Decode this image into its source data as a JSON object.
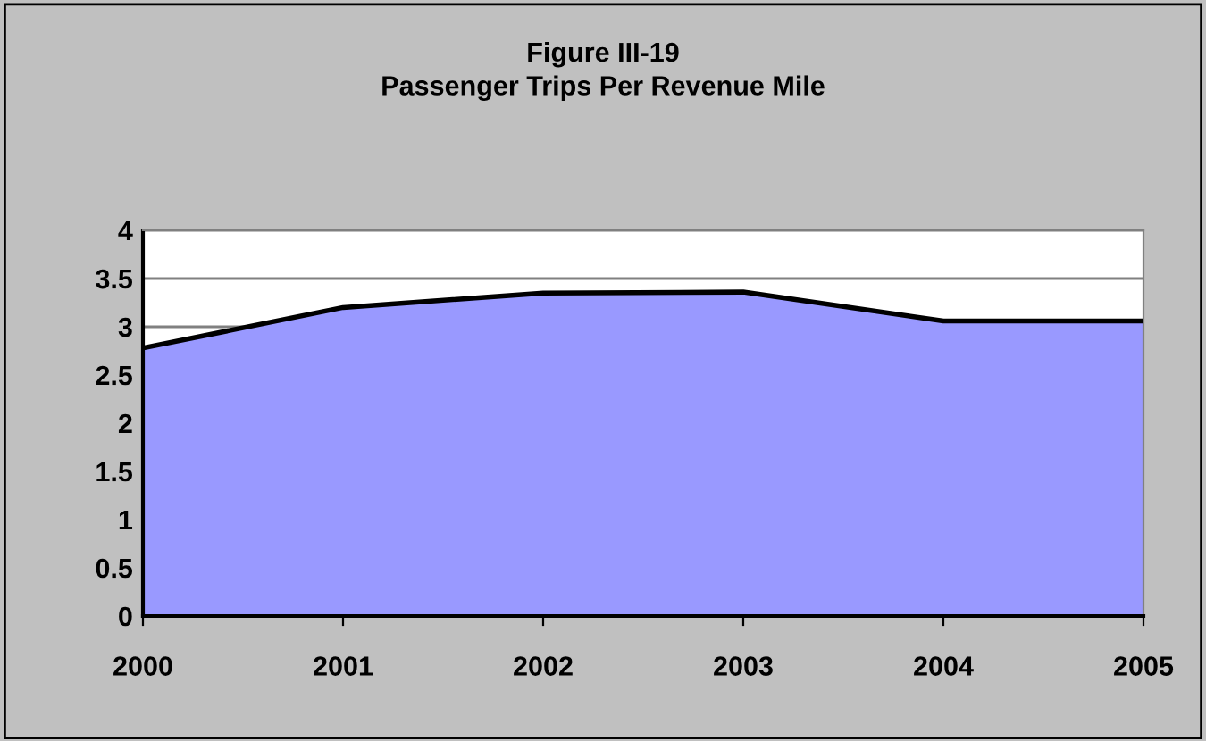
{
  "chart_data": {
    "type": "area",
    "title": "Figure III-19\nPassenger Trips Per Revenue Mile",
    "categories": [
      "2000",
      "2001",
      "2002",
      "2003",
      "2004",
      "2005"
    ],
    "series": [
      {
        "color": "#9999ff",
        "values": [
          2.78,
          3.2,
          3.35,
          3.36,
          3.06,
          3.06
        ]
      }
    ],
    "ylim": [
      0,
      4
    ],
    "yticks": [
      0,
      0.5,
      1,
      1.5,
      2,
      2.5,
      3,
      3.5,
      4
    ],
    "grid": "y",
    "legend": false
  }
}
